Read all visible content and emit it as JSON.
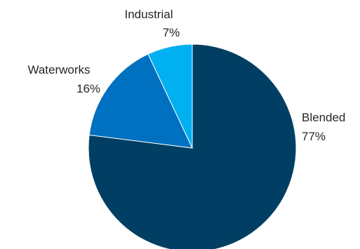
{
  "chart_data": {
    "type": "pie",
    "start_angle_deg": 0,
    "direction": "clockwise",
    "slices": [
      {
        "name": "Blended",
        "value": 77,
        "value_label": "77%",
        "color": "#003f63"
      },
      {
        "name": "Waterworks",
        "value": 16,
        "value_label": "16%",
        "color": "#0070c0"
      },
      {
        "name": "Industrial",
        "value": 7,
        "value_label": "7%",
        "color": "#00b0f0"
      }
    ]
  }
}
